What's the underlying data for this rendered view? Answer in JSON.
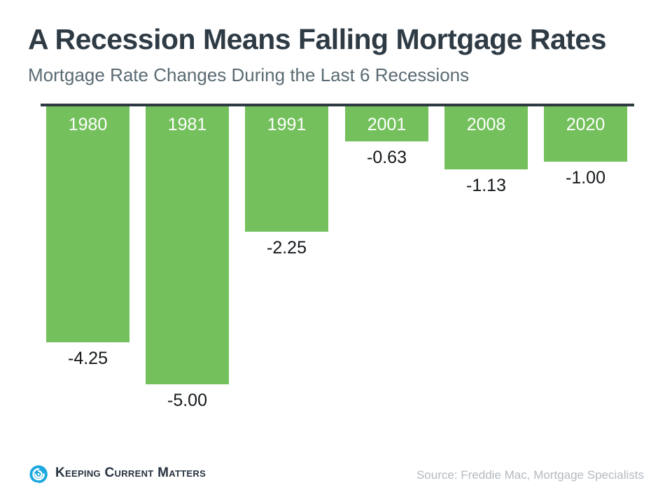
{
  "header": {
    "title": "A Recession Means Falling Mortgage Rates",
    "subtitle": "Mortgage Rate Changes During the Last 6 Recessions"
  },
  "chart_data": {
    "type": "bar",
    "orientation": "vertical-downward",
    "title": "A Recession Means Falling Mortgage Rates",
    "subtitle": "Mortgage Rate Changes During the Last 6 Recessions",
    "categories": [
      "1980",
      "1981",
      "1991",
      "2001",
      "2008",
      "2020"
    ],
    "values": [
      -4.25,
      -5.0,
      -2.25,
      -0.63,
      -1.13,
      -1.0
    ],
    "value_labels": [
      "-4.25",
      "-5.00",
      "-2.25",
      "-0.63",
      "-1.13",
      "-1.00"
    ],
    "xlabel": "",
    "ylabel": "",
    "ylim": [
      -5.5,
      0
    ],
    "grid": false,
    "legend": "none",
    "bar_color": "#73C05C",
    "baseline_color": "#2E3A42",
    "year_label_color": "#FFFFFF",
    "value_label_color": "#14181B"
  },
  "footer": {
    "logo_text": "Keeping Current Matters",
    "logo_icon": "kcm-swirl-icon",
    "logo_icon_color": "#1BA8E0",
    "source": "Source: Freddie Mac, Mortgage Specialists"
  }
}
